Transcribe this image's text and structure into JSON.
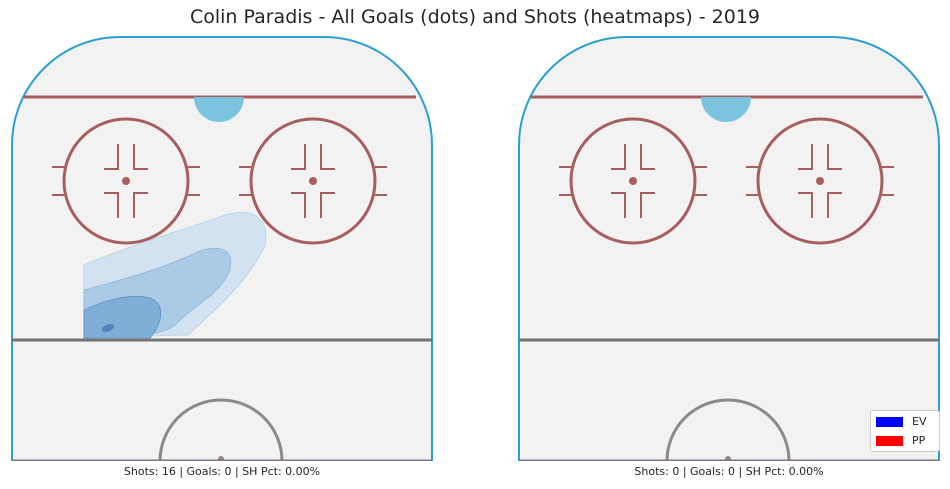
{
  "title": "Colin Paradis - All Goals (dots) and Shots (heatmaps) - 2019",
  "colors": {
    "rink_fill": "#f2f2f2",
    "board": "#2a9fd0",
    "red_line": "#a65e5e",
    "blue_line": "#737373",
    "crease": "#7cc3e0",
    "heat": [
      "#cfe0f0",
      "#a6c8e3",
      "#7aabd4",
      "#4a7fbf"
    ]
  },
  "chart_data": [
    {
      "type": "heatmap",
      "panel": "left",
      "caption": "Shots: 16 | Goals: 0 | SH Pct: 0.00%",
      "shots": 16,
      "goals": 0,
      "sh_pct": "0.00%",
      "goal_points": [],
      "density_levels": 4
    },
    {
      "type": "heatmap",
      "panel": "right",
      "caption": "Shots: 0 | Goals: 0 | SH Pct: 0.00%",
      "shots": 0,
      "goals": 0,
      "sh_pct": "0.00%",
      "goal_points": [],
      "density_levels": 0
    }
  ],
  "legend": {
    "position": "bottom-right",
    "items": [
      {
        "label": "EV",
        "color": "#0000ff"
      },
      {
        "label": "PP",
        "color": "#ff0000"
      }
    ]
  }
}
